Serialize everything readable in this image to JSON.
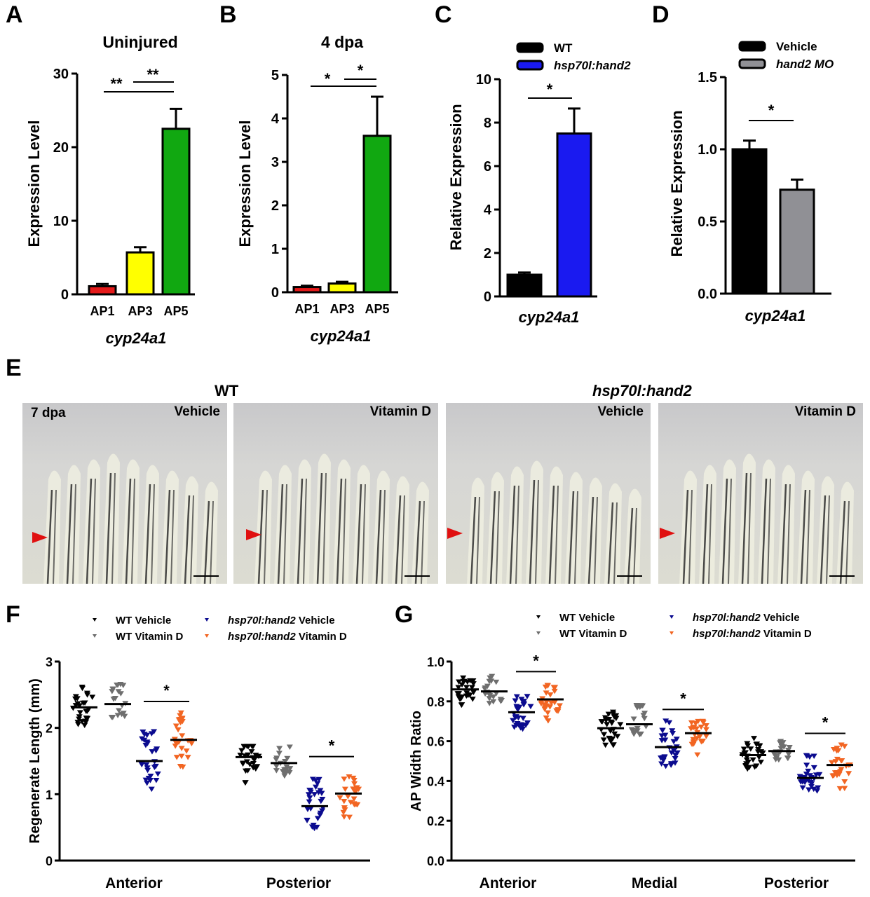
{
  "panels": {
    "A": {
      "letter": "A"
    },
    "B": {
      "letter": "B"
    },
    "C": {
      "letter": "C"
    },
    "D": {
      "letter": "D"
    },
    "E": {
      "letter": "E",
      "groups": [
        "WT",
        "hsp70l:hand2"
      ],
      "timepoint": "7 dpa",
      "images": [
        {
          "group": "WT",
          "condition": "Vehicle"
        },
        {
          "group": "WT",
          "condition": "Vitamin D"
        },
        {
          "group": "hsp70l:hand2",
          "condition": "Vehicle"
        },
        {
          "group": "hsp70l:hand2",
          "condition": "Vitamin D"
        }
      ]
    },
    "F": {
      "letter": "F"
    },
    "G": {
      "letter": "G"
    }
  },
  "colors": {
    "red": "#e41a1a",
    "yellow": "#ffff00",
    "green": "#11a811",
    "blue": "#1a1af0",
    "black": "#000000",
    "gray": "#909095",
    "wt_vehicle": "#000000",
    "wt_vitd": "#6e6e6e",
    "hand2_vehicle": "#0b0b8f",
    "hand2_vitd": "#f26522"
  },
  "legend_fg": [
    "WT Vehicle",
    "WT Vitamin D",
    "hsp70l:hand2 Vehicle",
    "hsp70l:hand2 Vitamin D"
  ],
  "chart_data": [
    {
      "id": "A",
      "type": "bar",
      "title": "Uninjured",
      "xlabel": "cyp24a1",
      "ylabel": "Expression Level",
      "categories": [
        "AP1",
        "AP3",
        "AP5"
      ],
      "values": [
        1.1,
        5.7,
        22.5
      ],
      "errors": [
        0.3,
        0.7,
        2.7
      ],
      "bar_colors": [
        "#e41a1a",
        "#ffff00",
        "#11a811"
      ],
      "ylim": [
        0,
        30
      ],
      "yticks": [
        0,
        10,
        20,
        30
      ],
      "significance": [
        {
          "from": "AP1",
          "to": "AP5",
          "label": "**"
        },
        {
          "from": "AP3",
          "to": "AP5",
          "label": "**"
        }
      ]
    },
    {
      "id": "B",
      "type": "bar",
      "title": "4 dpa",
      "xlabel": "cyp24a1",
      "ylabel": "Expression Level",
      "categories": [
        "AP1",
        "AP3",
        "AP5"
      ],
      "values": [
        0.12,
        0.2,
        3.6
      ],
      "errors": [
        0.03,
        0.04,
        0.9
      ],
      "bar_colors": [
        "#e41a1a",
        "#ffff00",
        "#11a811"
      ],
      "ylim": [
        0,
        5
      ],
      "yticks": [
        0,
        1,
        2,
        3,
        4,
        5
      ],
      "significance": [
        {
          "from": "AP1",
          "to": "AP5",
          "label": "*"
        },
        {
          "from": "AP3",
          "to": "AP5",
          "label": "*"
        }
      ]
    },
    {
      "id": "C",
      "type": "bar",
      "title": "",
      "xlabel": "cyp24a1",
      "ylabel": "Relative Expression",
      "categories": [
        "WT",
        "hsp70l:hand2"
      ],
      "values": [
        1.0,
        7.5
      ],
      "errors": [
        0.1,
        1.15
      ],
      "bar_colors": [
        "#000000",
        "#1a1af0"
      ],
      "ylim": [
        0,
        10
      ],
      "yticks": [
        0,
        2,
        4,
        6,
        8,
        10
      ],
      "legend": [
        "WT",
        "hsp70l:hand2"
      ],
      "legend_position": "top",
      "significance": [
        {
          "from": "WT",
          "to": "hsp70l:hand2",
          "label": "*"
        }
      ]
    },
    {
      "id": "D",
      "type": "bar",
      "title": "",
      "xlabel": "cyp24a1",
      "ylabel": "Relative Expression",
      "categories": [
        "Vehicle",
        "hand2 MO"
      ],
      "values": [
        1.0,
        0.72
      ],
      "errors": [
        0.06,
        0.07
      ],
      "bar_colors": [
        "#000000",
        "#909095"
      ],
      "ylim": [
        0,
        1.5
      ],
      "yticks": [
        "0.0",
        "0.5",
        "1.0",
        "1.5"
      ],
      "legend": [
        "Vehicle",
        "hand2 MO"
      ],
      "legend_position": "top",
      "significance": [
        {
          "from": "Vehicle",
          "to": "hand2 MO",
          "label": "*"
        }
      ]
    },
    {
      "id": "F",
      "type": "scatter",
      "title": "",
      "xlabel": "",
      "ylabel": "Regenerate Length (mm)",
      "categories": [
        "Anterior",
        "Posterior"
      ],
      "ylim": [
        0,
        3
      ],
      "yticks": [
        0,
        1,
        2,
        3
      ],
      "series": [
        {
          "name": "WT Vehicle",
          "color": "#000000",
          "medians": [
            2.31,
            1.56
          ],
          "ranges": [
            [
              2.03,
              2.63
            ],
            [
              1.14,
              1.72
            ]
          ],
          "n": 28
        },
        {
          "name": "WT Vitamin D",
          "color": "#6e6e6e",
          "medians": [
            2.36,
            1.47
          ],
          "ranges": [
            [
              2.07,
              2.7
            ],
            [
              1.2,
              1.74
            ]
          ],
          "n": 20
        },
        {
          "name": "hsp70l:hand2 Vehicle",
          "color": "#0b0b8f",
          "medians": [
            1.5,
            0.82
          ],
          "ranges": [
            [
              0.85,
              2.03
            ],
            [
              0.46,
              1.23
            ]
          ],
          "n": 30
        },
        {
          "name": "hsp70l:hand2 Vitamin D",
          "color": "#f26522",
          "medians": [
            1.82,
            1.01
          ],
          "ranges": [
            [
              1.37,
              2.25
            ],
            [
              0.58,
              1.42
            ]
          ],
          "n": 26
        }
      ],
      "significance": [
        {
          "category": "Anterior",
          "label": "*"
        },
        {
          "category": "Posterior",
          "label": "*"
        }
      ]
    },
    {
      "id": "G",
      "type": "scatter",
      "title": "",
      "xlabel": "",
      "ylabel": "AP Width Ratio",
      "categories": [
        "Anterior",
        "Medial",
        "Posterior"
      ],
      "ylim": [
        0,
        1.0
      ],
      "yticks": [
        "0.0",
        "0.2",
        "0.4",
        "0.6",
        "0.8",
        "1.0"
      ],
      "series": [
        {
          "name": "WT Vehicle",
          "color": "#000000",
          "medians": [
            0.86,
            0.665,
            0.53
          ],
          "ranges": [
            [
              0.78,
              0.92
            ],
            [
              0.57,
              0.75
            ],
            [
              0.46,
              0.62
            ]
          ],
          "n": 30
        },
        {
          "name": "WT Vitamin D",
          "color": "#6e6e6e",
          "medians": [
            0.85,
            0.685,
            0.55
          ],
          "ranges": [
            [
              0.79,
              0.93
            ],
            [
              0.63,
              0.78
            ],
            [
              0.5,
              0.6
            ]
          ],
          "n": 20
        },
        {
          "name": "hsp70l:hand2 Vehicle",
          "color": "#0b0b8f",
          "medians": [
            0.745,
            0.57,
            0.415
          ],
          "ranges": [
            [
              0.66,
              0.88
            ],
            [
              0.47,
              0.71
            ],
            [
              0.35,
              0.53
            ]
          ],
          "n": 30
        },
        {
          "name": "hsp70l:hand2 Vitamin D",
          "color": "#f26522",
          "medians": [
            0.81,
            0.64,
            0.48
          ],
          "ranges": [
            [
              0.7,
              0.9
            ],
            [
              0.53,
              0.7
            ],
            [
              0.36,
              0.59
            ]
          ],
          "n": 26
        }
      ],
      "significance": [
        {
          "category": "Anterior",
          "label": "*"
        },
        {
          "category": "Medial",
          "label": "*"
        },
        {
          "category": "Posterior",
          "label": "*"
        }
      ]
    }
  ]
}
